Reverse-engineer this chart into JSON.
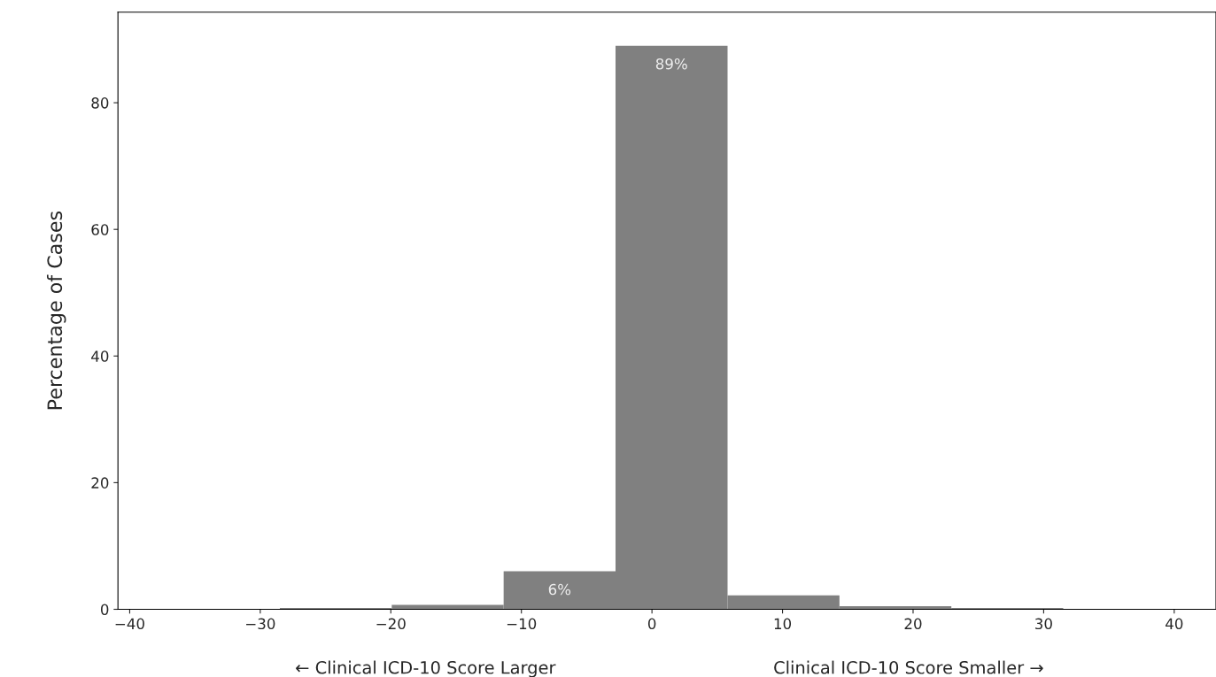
{
  "chart_data": {
    "type": "histogram",
    "ylabel": "Percentage of Cases",
    "bins": [
      -28.5,
      -19.93,
      -11.36,
      -2.79,
      5.79,
      14.36,
      22.93,
      31.5
    ],
    "values": [
      0.2,
      0.7,
      6,
      89,
      2.2,
      0.5,
      0.2
    ],
    "value_labels": [
      null,
      null,
      "6%",
      "89%",
      null,
      null,
      null
    ],
    "color": "#808080",
    "xlim": [
      -40.9,
      43.2
    ],
    "xticks": [
      -40,
      -30,
      -20,
      -10,
      0,
      10,
      20,
      30,
      40
    ],
    "ylim": [
      0,
      94.3
    ],
    "yticks": [
      0,
      20,
      40,
      60,
      80
    ],
    "grid": false,
    "legend": false,
    "annotations": [
      "← Clinical ICD-10 Score Larger",
      "Clinical ICD-10 Score Smaller →"
    ]
  }
}
